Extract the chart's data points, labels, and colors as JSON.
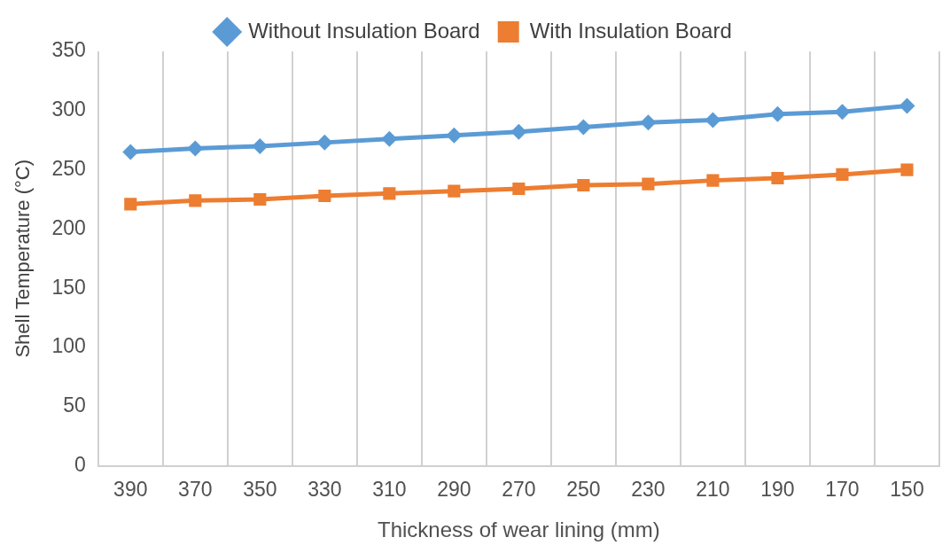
{
  "chart_data": {
    "type": "line",
    "xlabel": "Thickness of wear lining (mm)",
    "ylabel": "Shell Temperature (°C)",
    "categories": [
      "390",
      "370",
      "350",
      "330",
      "310",
      "290",
      "270",
      "250",
      "230",
      "210",
      "190",
      "170",
      "150"
    ],
    "series": [
      {
        "name": "Without Insulation Board",
        "color": "#5b9bd5",
        "marker": "diamond",
        "values": [
          265,
          268,
          270,
          273,
          276,
          279,
          282,
          286,
          290,
          292,
          297,
          299,
          304
        ]
      },
      {
        "name": "With Insulation Board",
        "color": "#ed7d31",
        "marker": "square",
        "values": [
          221,
          224,
          225,
          228,
          230,
          232,
          234,
          237,
          238,
          241,
          243,
          246,
          250
        ]
      }
    ],
    "ylim": [
      0,
      350
    ],
    "yticks": [
      0,
      50,
      100,
      150,
      200,
      250,
      300,
      350
    ],
    "grid": "x",
    "legend": "top",
    "line_style": "solid"
  }
}
